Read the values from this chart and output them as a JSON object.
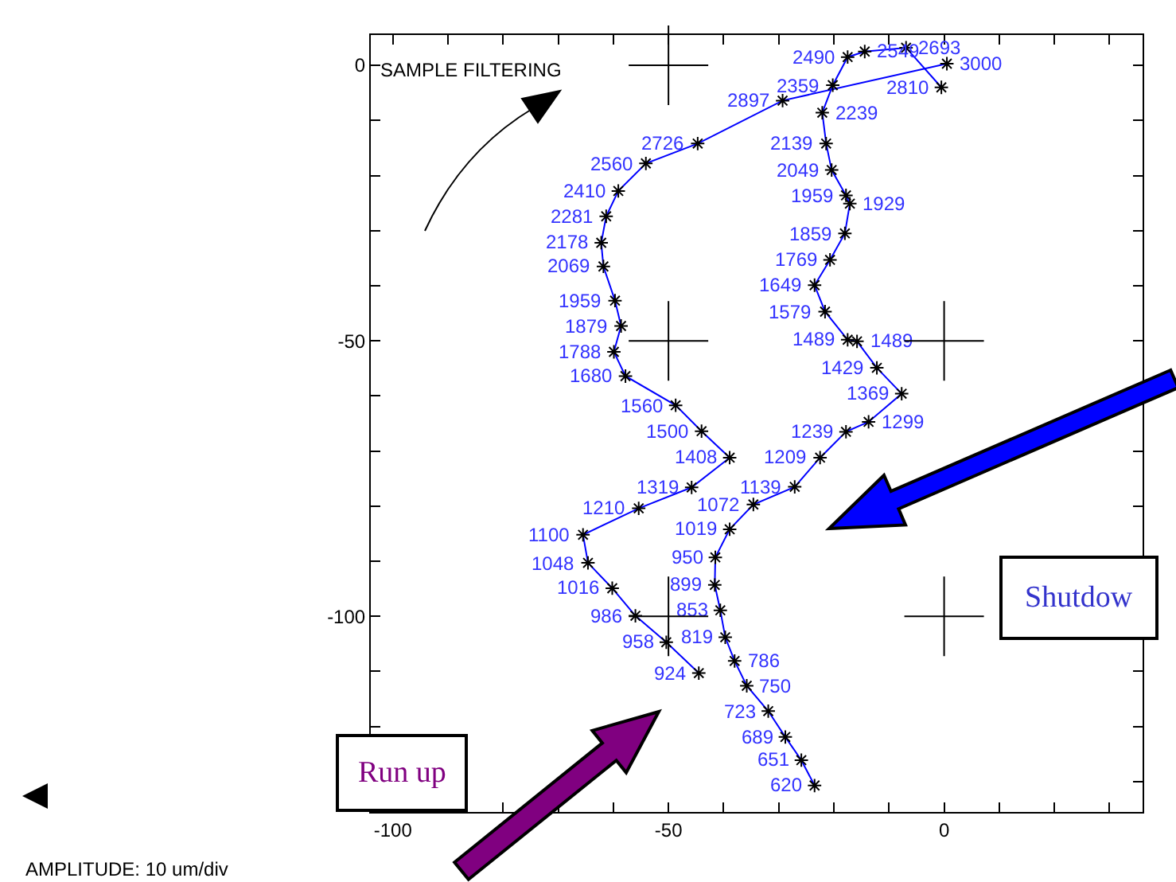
{
  "chart_data": {
    "type": "line",
    "marker": "cross",
    "xlim": [
      -104,
      36
    ],
    "ylim": [
      -135.5,
      5.5
    ],
    "xticks": [
      {
        "value": -100,
        "label": "-100"
      },
      {
        "value": -90,
        "label": null
      },
      {
        "value": -80,
        "label": null
      },
      {
        "value": -70,
        "label": null
      },
      {
        "value": -60,
        "label": null
      },
      {
        "value": -50,
        "label": "-50"
      },
      {
        "value": -40,
        "label": null
      },
      {
        "value": -30,
        "label": null
      },
      {
        "value": -20,
        "label": null
      },
      {
        "value": -10,
        "label": null
      },
      {
        "value": 0,
        "label": "0"
      },
      {
        "value": 10,
        "label": null
      },
      {
        "value": 20,
        "label": null
      },
      {
        "value": 30,
        "label": null
      }
    ],
    "yticks": [
      {
        "value": 0,
        "label": "0"
      },
      {
        "value": -10,
        "label": null
      },
      {
        "value": -20,
        "label": null
      },
      {
        "value": -30,
        "label": null
      },
      {
        "value": -40,
        "label": null
      },
      {
        "value": -50,
        "label": "-50"
      },
      {
        "value": -60,
        "label": null
      },
      {
        "value": -70,
        "label": null
      },
      {
        "value": -80,
        "label": null
      },
      {
        "value": -90,
        "label": null
      },
      {
        "value": -100,
        "label": "-100"
      },
      {
        "value": -110,
        "label": null
      },
      {
        "value": -120,
        "label": null
      },
      {
        "value": -130,
        "label": null
      }
    ],
    "series": [
      {
        "color": "#0000ff",
        "x": [
          -44.5,
          -50.4,
          -56.0,
          -60.2,
          -64.6,
          -65.5,
          -55.4,
          -45.8,
          -38.9,
          -44.0,
          -48.7,
          -57.8,
          -59.9,
          -58.6,
          -59.7,
          -61.8,
          -62.2,
          -61.3,
          -59.1,
          -54.1,
          -44.7,
          -29.3,
          0.5
        ],
        "values": [
          -110.3,
          -104.7,
          -99.9,
          -94.9,
          -90.3,
          -85.2,
          -80.4,
          -76.6,
          -71.2,
          -66.4,
          -61.7,
          -56.4,
          -52.0,
          -47.3,
          -42.7,
          -36.5,
          -32.2,
          -27.4,
          -22.8,
          -17.8,
          -14.2,
          -6.4,
          0.3
        ]
      },
      {
        "color": "#0000ff",
        "x": [
          -0.5,
          -6.9,
          -14.4,
          -17.5,
          -20.2,
          -22.1,
          -21.4,
          -20.4,
          -17.8,
          -17.1,
          -18.0,
          -20.7,
          -23.5,
          -21.6,
          -17.5,
          -15.8,
          -12.2,
          -7.7,
          -13.7,
          -17.8,
          -22.5,
          -27.1,
          -34.6,
          -38.9,
          -41.5,
          -41.6,
          -40.6,
          -39.7,
          -38.0,
          -35.8,
          -31.9,
          -28.8,
          -25.9,
          -23.5
        ],
        "values": [
          -4.0,
          3.2,
          2.5,
          1.5,
          -3.6,
          -8.6,
          -14.2,
          -19.0,
          -23.6,
          -25.1,
          -30.5,
          -35.3,
          -39.9,
          -44.7,
          -49.8,
          -50.1,
          -54.9,
          -59.6,
          -64.7,
          -66.5,
          -71.2,
          -76.5,
          -79.7,
          -84.2,
          -89.3,
          -94.3,
          -98.9,
          -103.8,
          -108.1,
          -112.6,
          -117.2,
          -121.9,
          -126.1,
          -130.7
        ]
      }
    ],
    "annotations": [
      "SAMPLE FILTERING",
      "Shutdow",
      "Run up",
      "AMPLITUDE: 10 um/div",
      {
        "text": "924",
        "x": -44.5,
        "y": -110.3
      },
      {
        "text": "958",
        "x": -50.4,
        "y": -104.7
      },
      {
        "text": "986",
        "x": -56.0,
        "y": -99.9
      },
      {
        "text": "1016",
        "x": -60.2,
        "y": -94.9
      },
      {
        "text": "1048",
        "x": -64.6,
        "y": -90.3
      },
      {
        "text": "1100",
        "x": -65.5,
        "y": -85.2
      },
      {
        "text": "1210",
        "x": -55.4,
        "y": -80.4
      },
      {
        "text": "1319",
        "x": -45.8,
        "y": -76.6
      },
      {
        "text": "1408",
        "x": -38.9,
        "y": -71.2
      },
      {
        "text": "1500",
        "x": -44.0,
        "y": -66.4
      },
      {
        "text": "1560",
        "x": -48.7,
        "y": -61.7
      },
      {
        "text": "1680",
        "x": -57.8,
        "y": -56.4
      },
      {
        "text": "1788",
        "x": -59.9,
        "y": -52.0
      },
      {
        "text": "1879",
        "x": -58.6,
        "y": -47.3
      },
      {
        "text": "1959",
        "x": -59.7,
        "y": -42.7
      },
      {
        "text": "2069",
        "x": -61.8,
        "y": -36.5
      },
      {
        "text": "2178",
        "x": -62.2,
        "y": -32.2
      },
      {
        "text": "2281",
        "x": -61.3,
        "y": -27.4
      },
      {
        "text": "2410",
        "x": -59.1,
        "y": -22.8
      },
      {
        "text": "2560",
        "x": -54.1,
        "y": -17.8
      },
      {
        "text": "2726",
        "x": -44.7,
        "y": -14.2
      },
      {
        "text": "2897",
        "x": -29.3,
        "y": -6.4
      },
      {
        "text": "2490",
        "x": -17.5,
        "y": 1.5
      },
      {
        "text": "2549",
        "x": -14.4,
        "y": 2.5
      },
      {
        "text": "2693",
        "x": -6.9,
        "y": 3.2
      },
      {
        "text": "3000",
        "x": 0.5,
        "y": 0.3
      },
      {
        "text": "2810",
        "x": -0.5,
        "y": -4.0
      },
      {
        "text": "2359",
        "x": -20.2,
        "y": -3.6
      },
      {
        "text": "2239",
        "x": -22.1,
        "y": -8.6
      },
      {
        "text": "2139",
        "x": -21.4,
        "y": -14.2
      },
      {
        "text": "2049",
        "x": -20.4,
        "y": -19.0
      },
      {
        "text": "1959",
        "x": -17.8,
        "y": -23.6
      },
      {
        "text": "1929",
        "x": -17.1,
        "y": -25.1
      },
      {
        "text": "1859",
        "x": -18.0,
        "y": -30.5
      },
      {
        "text": "1769",
        "x": -20.7,
        "y": -35.3
      },
      {
        "text": "1649",
        "x": -23.5,
        "y": -39.9
      },
      {
        "text": "1579",
        "x": -21.6,
        "y": -44.7
      },
      {
        "text": "1489",
        "x": -17.5,
        "y": -49.8
      },
      {
        "text": "1489",
        "x": -15.8,
        "y": -50.1
      },
      {
        "text": "1429",
        "x": -12.2,
        "y": -54.9
      },
      {
        "text": "1369",
        "x": -7.7,
        "y": -59.6
      },
      {
        "text": "1239",
        "x": -17.8,
        "y": -66.5
      },
      {
        "text": "1299",
        "x": -13.7,
        "y": -64.7
      },
      {
        "text": "1209",
        "x": -22.5,
        "y": -71.2
      },
      {
        "text": "1139",
        "x": -27.1,
        "y": -76.5
      },
      {
        "text": "1072",
        "x": -34.6,
        "y": -79.7
      },
      {
        "text": "1019",
        "x": -38.9,
        "y": -84.2
      },
      {
        "text": "950",
        "x": -41.5,
        "y": -89.3
      },
      {
        "text": "899",
        "x": -41.6,
        "y": -94.3
      },
      {
        "text": "853",
        "x": -40.6,
        "y": -98.9
      },
      {
        "text": "819",
        "x": -39.7,
        "y": -103.8
      },
      {
        "text": "786",
        "x": -38.0,
        "y": -108.1
      },
      {
        "text": "750",
        "x": -35.8,
        "y": -112.6
      },
      {
        "text": "723",
        "x": -31.9,
        "y": -117.2
      },
      {
        "text": "689",
        "x": -28.8,
        "y": -121.9
      },
      {
        "text": "651",
        "x": -25.9,
        "y": -126.1
      },
      {
        "text": "620",
        "x": -23.5,
        "y": -130.7
      }
    ]
  }
}
